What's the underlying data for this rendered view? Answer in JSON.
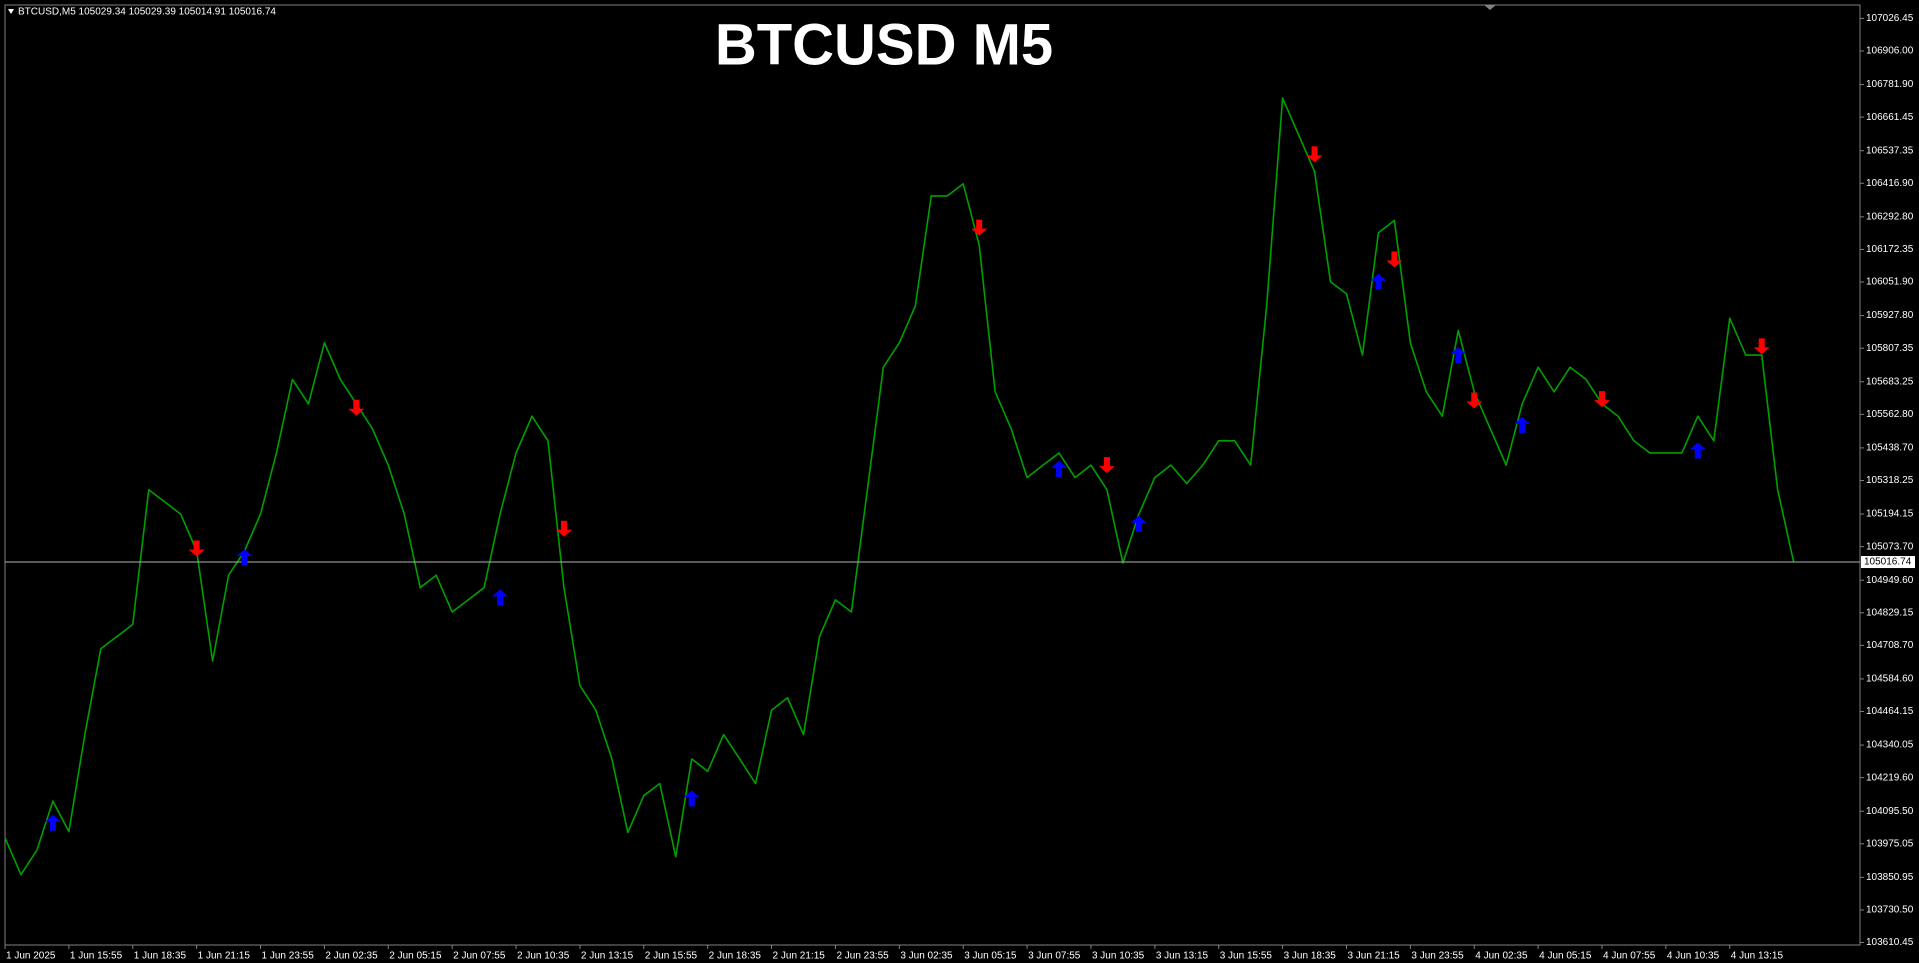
{
  "chart_data": {
    "type": "line",
    "title": "BTCUSD M5",
    "subtitle": "BTCUSD,M5  105029.34 105029.39 105014.91 105016.74",
    "grid": false,
    "ylim": [
      103601,
      107076
    ],
    "yticks": [
      {
        "value": 107026.45,
        "label": "107026.45"
      },
      {
        "value": 106906,
        "label": "106906.00"
      },
      {
        "value": 106781.9,
        "label": "106781.90"
      },
      {
        "value": 106661.45,
        "label": "106661.45"
      },
      {
        "value": 106537.35,
        "label": "106537.35"
      },
      {
        "value": 106416.9,
        "label": "106416.90"
      },
      {
        "value": 106292.8,
        "label": "106292.80"
      },
      {
        "value": 106172.35,
        "label": "106172.35"
      },
      {
        "value": 106051.9,
        "label": "106051.90"
      },
      {
        "value": 105927.8,
        "label": "105927.80"
      },
      {
        "value": 105807.35,
        "label": "105807.35"
      },
      {
        "value": 105683.25,
        "label": "105683.25"
      },
      {
        "value": 105562.8,
        "label": "105562.80"
      },
      {
        "value": 105438.7,
        "label": "105438.70"
      },
      {
        "value": 105318.25,
        "label": "105318.25"
      },
      {
        "value": 105194.15,
        "label": "105194.15"
      },
      {
        "value": 105073.7,
        "label": "105073.70"
      },
      {
        "value": 104949.6,
        "label": "104949.60"
      },
      {
        "value": 104829.15,
        "label": "104829.15"
      },
      {
        "value": 104708.7,
        "label": "104708.70"
      },
      {
        "value": 104584.6,
        "label": "104584.60"
      },
      {
        "value": 104464.15,
        "label": "104464.15"
      },
      {
        "value": 104340.05,
        "label": "104340.05"
      },
      {
        "value": 104219.6,
        "label": "104219.60"
      },
      {
        "value": 104095.5,
        "label": "104095.50"
      },
      {
        "value": 103975.05,
        "label": "103975.05"
      },
      {
        "value": 103850.95,
        "label": "103850.95"
      },
      {
        "value": 103730.5,
        "label": "103730.50"
      },
      {
        "value": 103610.45,
        "label": "103610.45"
      }
    ],
    "last_price": 105016.74,
    "categories": [
      "1 Jun 2025",
      null,
      null,
      null,
      "1 Jun 15:55",
      null,
      null,
      null,
      "1 Jun 18:35",
      null,
      null,
      null,
      "1 Jun 21:15",
      null,
      null,
      null,
      "1 Jun 23:55",
      null,
      null,
      null,
      "2 Jun 02:35",
      null,
      null,
      null,
      "2 Jun 05:15",
      null,
      null,
      null,
      "2 Jun 07:55",
      null,
      null,
      null,
      "2 Jun 10:35",
      null,
      null,
      null,
      "2 Jun 13:15",
      null,
      null,
      null,
      "2 Jun 15:55",
      null,
      null,
      null,
      "2 Jun 18:35",
      null,
      null,
      null,
      "2 Jun 21:15",
      null,
      null,
      null,
      "2 Jun 23:55",
      null,
      null,
      null,
      "3 Jun 02:35",
      null,
      null,
      null,
      "3 Jun 05:15",
      null,
      null,
      null,
      "3 Jun 07:55",
      null,
      null,
      null,
      "3 Jun 10:35",
      null,
      null,
      null,
      "3 Jun 13:15",
      null,
      null,
      null,
      "3 Jun 15:55",
      null,
      null,
      null,
      "3 Jun 18:35",
      null,
      null,
      null,
      "3 Jun 21:15",
      null,
      null,
      null,
      "3 Jun 23:55",
      null,
      null,
      null,
      "4 Jun 02:35",
      null,
      null,
      null,
      "4 Jun 05:15",
      null,
      null,
      null,
      "4 Jun 07:55",
      null,
      null,
      null,
      "4 Jun 10:35",
      null,
      null,
      null,
      "4 Jun 13:15",
      null,
      null,
      null,
      null
    ],
    "price": {
      "color": "#00a000",
      "values": [
        103997,
        103861,
        103952,
        104133,
        104020,
        104379,
        104696,
        104741,
        104786,
        105284,
        105239,
        105194,
        105058,
        104651,
        104968,
        105058,
        105194,
        105420,
        105692,
        105601,
        105827,
        105692,
        105601,
        105510,
        105375,
        105194,
        104922,
        104968,
        104832,
        104877,
        104922,
        105194,
        105420,
        105556,
        105465,
        104922,
        104560,
        104469,
        104289,
        104017,
        104153,
        104198,
        103927,
        104289,
        104243,
        104379,
        104289,
        104198,
        104469,
        104515,
        104379,
        104741,
        104877,
        104832,
        105284,
        105737,
        105827,
        105963,
        106370,
        106370,
        106415,
        106189,
        105646,
        105510,
        105329,
        105375,
        105420,
        105329,
        105375,
        105284,
        105013,
        105194,
        105329,
        105375,
        105307,
        105375,
        105465,
        105465,
        105375,
        105963,
        106732,
        106596,
        106461,
        106053,
        106008,
        105782,
        106234,
        106280,
        105827,
        105646,
        105556,
        105873,
        105646,
        105510,
        105375,
        105601,
        105737,
        105646,
        105737,
        105692,
        105601,
        105556,
        105465,
        105420,
        105420,
        105420,
        105556,
        105465,
        105918,
        105782,
        105782,
        105284,
        105017
      ]
    },
    "up_arrows": {
      "color": "#0000ff",
      "values": [
        null,
        null,
        null,
        104053,
        null,
        null,
        null,
        null,
        null,
        null,
        null,
        null,
        null,
        null,
        null,
        105035,
        null,
        null,
        null,
        null,
        null,
        null,
        null,
        null,
        null,
        null,
        null,
        null,
        null,
        null,
        null,
        104886,
        null,
        null,
        null,
        null,
        null,
        null,
        null,
        null,
        null,
        null,
        null,
        104143,
        null,
        null,
        null,
        null,
        null,
        null,
        null,
        null,
        null,
        null,
        null,
        null,
        null,
        null,
        null,
        null,
        null,
        null,
        null,
        null,
        null,
        null,
        105361,
        null,
        null,
        null,
        null,
        105158,
        null,
        null,
        null,
        null,
        null,
        null,
        null,
        null,
        null,
        null,
        null,
        null,
        null,
        null,
        106053,
        null,
        null,
        null,
        null,
        105782,
        null,
        null,
        null,
        105524,
        null,
        null,
        null,
        null,
        null,
        null,
        null,
        null,
        null,
        null,
        105429,
        null,
        null,
        null,
        null,
        null,
        null
      ]
    },
    "down_arrows": {
      "color": "#ff0000",
      "values": [
        null,
        null,
        null,
        null,
        null,
        null,
        null,
        null,
        null,
        null,
        null,
        null,
        105067,
        null,
        null,
        null,
        null,
        null,
        null,
        null,
        null,
        null,
        105587,
        null,
        null,
        null,
        null,
        null,
        null,
        null,
        null,
        null,
        null,
        null,
        null,
        105140,
        null,
        null,
        null,
        null,
        null,
        null,
        null,
        null,
        null,
        null,
        null,
        null,
        null,
        null,
        null,
        null,
        null,
        null,
        null,
        null,
        null,
        null,
        null,
        null,
        null,
        106253,
        null,
        null,
        null,
        null,
        null,
        null,
        null,
        105375,
        null,
        null,
        null,
        null,
        null,
        null,
        null,
        null,
        null,
        null,
        null,
        null,
        106524,
        null,
        null,
        null,
        null,
        106135,
        null,
        null,
        null,
        null,
        105614,
        null,
        null,
        null,
        null,
        null,
        null,
        null,
        105619,
        null,
        null,
        null,
        null,
        null,
        null,
        null,
        null,
        null,
        105814,
        null,
        null
      ]
    }
  }
}
